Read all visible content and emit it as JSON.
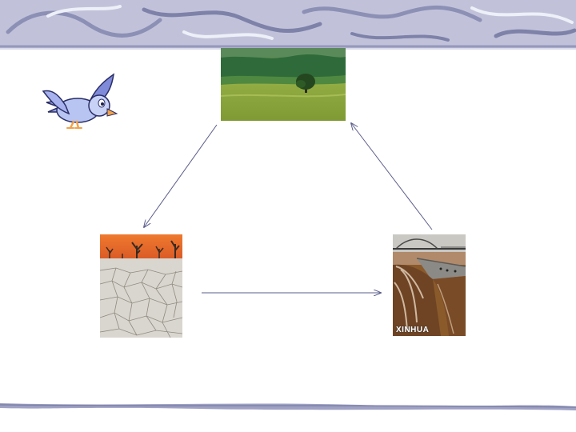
{
  "colors": {
    "banner_base": "#b9bad4",
    "banner_swirl": "#7e82a8",
    "arrow": "#5a5d8a",
    "grass": "#8aa53c",
    "forest": "#2f6b3a",
    "desert_sky": "#e86a2a",
    "cracked_earth": "#d9d6cf",
    "flood_water": "#8b5a2b"
  },
  "icons": {
    "bird": "cartoon-bird-icon",
    "grassland": "grassland-photo",
    "desert": "cracked-desert-photo",
    "flood": "flood-photo"
  },
  "flood_photo": {
    "watermark": "XINHUA"
  }
}
